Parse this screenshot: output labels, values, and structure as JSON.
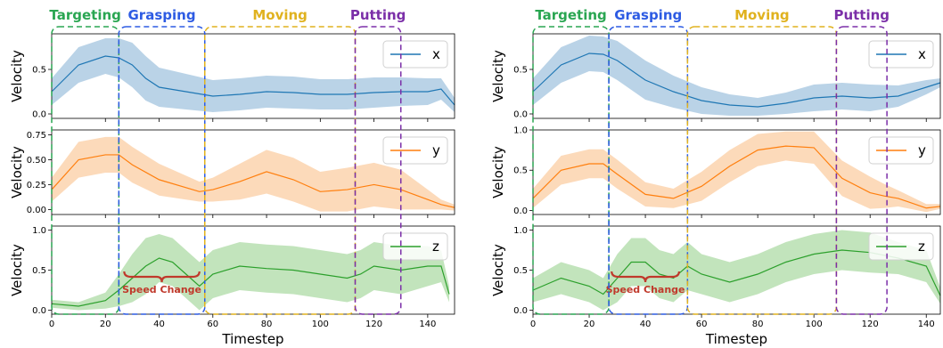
{
  "colors": {
    "x": "#1f77b4",
    "x_fill": "#aecbe3",
    "y": "#ff7f0e",
    "y_fill": "#fcd3ae",
    "z": "#2ca02c",
    "z_fill": "#b7dfb0",
    "targeting": "#2aa652",
    "grasping": "#2d5be3",
    "moving": "#e0b21f",
    "putting": "#7b2fa8",
    "annotation": "#c0392b"
  },
  "chart_data": [
    {
      "type": "line",
      "phases": [
        {
          "label": "Targeting",
          "start": 0,
          "end": 25,
          "color_key": "targeting"
        },
        {
          "label": "Grasping",
          "start": 25,
          "end": 57,
          "color_key": "grasping"
        },
        {
          "label": "Moving",
          "start": 57,
          "end": 113,
          "color_key": "moving"
        },
        {
          "label": "Putting",
          "start": 113,
          "end": 130,
          "color_key": "putting"
        }
      ],
      "annotation": {
        "text": "Speed Change",
        "x_start": 27,
        "x_end": 55,
        "panel": "z"
      },
      "xlabel": "Timestep",
      "x_ticks": [
        "0",
        "20",
        "40",
        "60",
        "80",
        "100",
        "120",
        "140"
      ],
      "xlim": [
        0,
        150
      ],
      "panels": [
        {
          "name": "x",
          "ylabel": "Velocity",
          "ylim": [
            -0.05,
            0.9
          ],
          "y_ticks": [
            {
              "v": 0.0,
              "t": "0.0"
            },
            {
              "v": 0.5,
              "t": "0.5"
            }
          ],
          "x": [
            0,
            10,
            20,
            25,
            30,
            35,
            40,
            50,
            60,
            70,
            80,
            90,
            100,
            110,
            120,
            130,
            140,
            145,
            150
          ],
          "mean": [
            0.25,
            0.55,
            0.65,
            0.63,
            0.55,
            0.4,
            0.3,
            0.25,
            0.2,
            0.22,
            0.25,
            0.24,
            0.22,
            0.22,
            0.24,
            0.25,
            0.25,
            0.28,
            0.1
          ],
          "band": [
            0.15,
            0.2,
            0.2,
            0.22,
            0.25,
            0.25,
            0.22,
            0.2,
            0.18,
            0.18,
            0.18,
            0.18,
            0.17,
            0.17,
            0.17,
            0.16,
            0.15,
            0.12,
            0.08
          ]
        },
        {
          "name": "y",
          "ylabel": "Velocity",
          "ylim": [
            -0.05,
            0.8
          ],
          "y_ticks": [
            {
              "v": 0.0,
              "t": "0.00"
            },
            {
              "v": 0.25,
              "t": "0.25"
            },
            {
              "v": 0.5,
              "t": "0.50"
            },
            {
              "v": 0.75,
              "t": "0.75"
            }
          ],
          "x": [
            0,
            10,
            20,
            25,
            30,
            40,
            50,
            55,
            60,
            70,
            80,
            90,
            100,
            110,
            120,
            130,
            140,
            145,
            150
          ],
          "mean": [
            0.2,
            0.5,
            0.55,
            0.55,
            0.45,
            0.3,
            0.22,
            0.18,
            0.2,
            0.28,
            0.38,
            0.3,
            0.18,
            0.2,
            0.25,
            0.2,
            0.1,
            0.05,
            0.02
          ],
          "band": [
            0.12,
            0.18,
            0.18,
            0.18,
            0.18,
            0.16,
            0.12,
            0.1,
            0.12,
            0.18,
            0.22,
            0.22,
            0.2,
            0.22,
            0.22,
            0.2,
            0.1,
            0.05,
            0.03
          ]
        },
        {
          "name": "z",
          "ylabel": "Velocity",
          "ylim": [
            -0.05,
            1.05
          ],
          "y_ticks": [
            {
              "v": 0.0,
              "t": "0.0"
            },
            {
              "v": 0.5,
              "t": "0.5"
            },
            {
              "v": 1.0,
              "t": "1.0"
            }
          ],
          "x": [
            0,
            10,
            20,
            25,
            30,
            35,
            40,
            45,
            50,
            55,
            60,
            70,
            80,
            90,
            100,
            110,
            115,
            120,
            130,
            140,
            145,
            148
          ],
          "mean": [
            0.08,
            0.05,
            0.12,
            0.25,
            0.4,
            0.55,
            0.65,
            0.6,
            0.45,
            0.3,
            0.45,
            0.55,
            0.52,
            0.5,
            0.45,
            0.4,
            0.45,
            0.55,
            0.5,
            0.55,
            0.55,
            0.2
          ],
          "band": [
            0.05,
            0.05,
            0.1,
            0.2,
            0.3,
            0.35,
            0.3,
            0.3,
            0.3,
            0.3,
            0.3,
            0.3,
            0.3,
            0.3,
            0.3,
            0.3,
            0.3,
            0.3,
            0.3,
            0.25,
            0.2,
            0.1
          ]
        }
      ]
    },
    {
      "type": "line",
      "phases": [
        {
          "label": "Targeting",
          "start": 0,
          "end": 27,
          "color_key": "targeting"
        },
        {
          "label": "Grasping",
          "start": 27,
          "end": 55,
          "color_key": "grasping"
        },
        {
          "label": "Moving",
          "start": 55,
          "end": 108,
          "color_key": "moving"
        },
        {
          "label": "Putting",
          "start": 108,
          "end": 126,
          "color_key": "putting"
        }
      ],
      "annotation": {
        "text": "Speed Change",
        "x_start": 28,
        "x_end": 52,
        "panel": "z"
      },
      "xlabel": "Timestep",
      "x_ticks": [
        "0",
        "20",
        "40",
        "60",
        "80",
        "100",
        "120",
        "140"
      ],
      "xlim": [
        0,
        145
      ],
      "panels": [
        {
          "name": "x",
          "ylabel": "Velocity",
          "ylim": [
            -0.05,
            0.9
          ],
          "y_ticks": [
            {
              "v": 0.0,
              "t": "0.0"
            },
            {
              "v": 0.5,
              "t": "0.5"
            }
          ],
          "x": [
            0,
            10,
            20,
            25,
            30,
            40,
            50,
            60,
            70,
            80,
            90,
            100,
            110,
            120,
            130,
            140,
            145
          ],
          "mean": [
            0.25,
            0.55,
            0.68,
            0.67,
            0.6,
            0.38,
            0.25,
            0.15,
            0.1,
            0.08,
            0.12,
            0.18,
            0.2,
            0.18,
            0.2,
            0.3,
            0.35
          ],
          "band": [
            0.15,
            0.2,
            0.2,
            0.2,
            0.22,
            0.22,
            0.18,
            0.15,
            0.12,
            0.1,
            0.12,
            0.15,
            0.15,
            0.15,
            0.12,
            0.08,
            0.05
          ]
        },
        {
          "name": "y",
          "ylabel": "Velocity",
          "ylim": [
            -0.05,
            1.0
          ],
          "y_ticks": [
            {
              "v": 0.0,
              "t": "0.0"
            },
            {
              "v": 0.5,
              "t": "0.5"
            },
            {
              "v": 1.0,
              "t": "1.0"
            }
          ],
          "x": [
            0,
            10,
            20,
            25,
            30,
            40,
            50,
            60,
            70,
            80,
            90,
            100,
            110,
            120,
            125,
            130,
            140,
            145
          ],
          "mean": [
            0.15,
            0.5,
            0.58,
            0.58,
            0.45,
            0.2,
            0.15,
            0.3,
            0.55,
            0.75,
            0.8,
            0.78,
            0.4,
            0.22,
            0.18,
            0.15,
            0.03,
            0.05
          ],
          "band": [
            0.12,
            0.18,
            0.18,
            0.18,
            0.18,
            0.15,
            0.12,
            0.18,
            0.2,
            0.2,
            0.18,
            0.2,
            0.22,
            0.2,
            0.15,
            0.1,
            0.05,
            0.03
          ]
        },
        {
          "name": "z",
          "ylabel": "Velocity",
          "ylim": [
            -0.05,
            1.05
          ],
          "y_ticks": [
            {
              "v": 0.0,
              "t": "0.0"
            },
            {
              "v": 0.5,
              "t": "0.5"
            },
            {
              "v": 1.0,
              "t": "1.0"
            }
          ],
          "x": [
            0,
            10,
            20,
            25,
            30,
            35,
            40,
            45,
            50,
            55,
            60,
            70,
            80,
            90,
            100,
            110,
            120,
            130,
            140,
            145
          ],
          "mean": [
            0.25,
            0.4,
            0.3,
            0.2,
            0.4,
            0.6,
            0.6,
            0.45,
            0.4,
            0.55,
            0.45,
            0.35,
            0.45,
            0.6,
            0.7,
            0.75,
            0.72,
            0.65,
            0.55,
            0.18
          ],
          "band": [
            0.15,
            0.2,
            0.2,
            0.2,
            0.3,
            0.3,
            0.3,
            0.3,
            0.3,
            0.3,
            0.25,
            0.25,
            0.25,
            0.25,
            0.25,
            0.25,
            0.25,
            0.2,
            0.2,
            0.1
          ]
        }
      ]
    }
  ]
}
